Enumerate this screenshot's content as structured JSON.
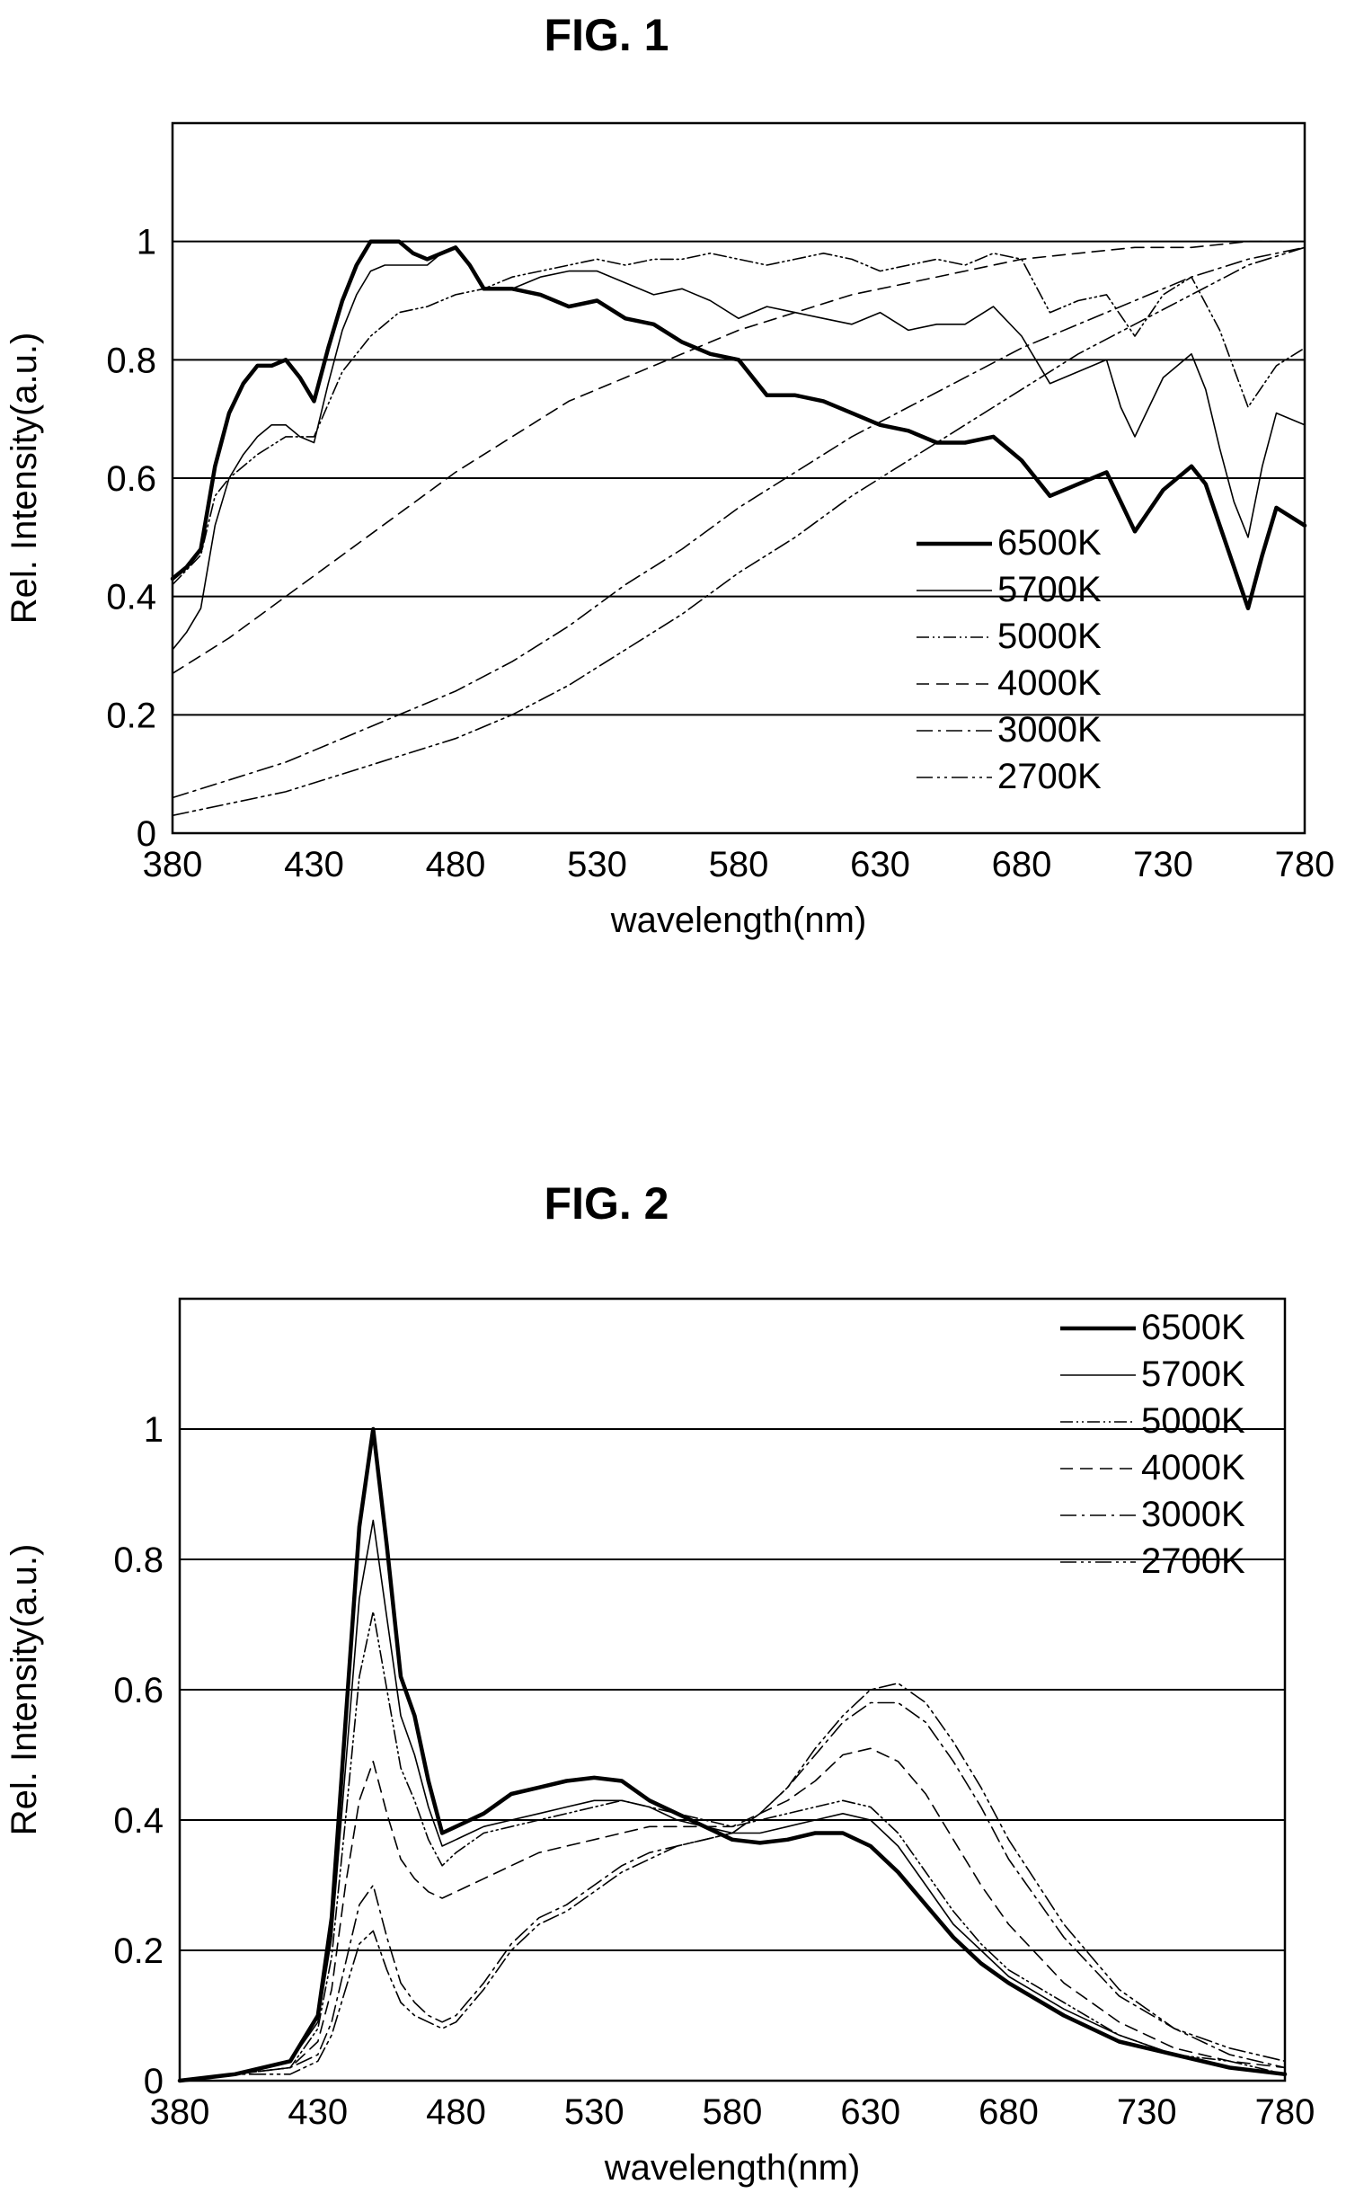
{
  "figures": {
    "fig1_title": "FIG. 1",
    "fig2_title": "FIG. 2"
  },
  "chart_data": [
    {
      "type": "line",
      "title": "FIG. 1",
      "xlabel": "wavelength(nm)",
      "ylabel": "Rel. Intensity(a.u.)",
      "xlim": [
        380,
        780
      ],
      "ylim": [
        0,
        1.2
      ],
      "xticks": [
        380,
        430,
        480,
        530,
        580,
        630,
        680,
        730,
        780
      ],
      "yticks": [
        0,
        0.2,
        0.4,
        0.6,
        0.8,
        1
      ],
      "ytick_labels": [
        "0",
        "0.2",
        "0.4",
        "0.6",
        "0.8",
        "1"
      ],
      "grid": "horizontal",
      "legend": "bottom-right",
      "series": [
        {
          "name": "6500K",
          "style": "thick",
          "x": [
            380,
            385,
            390,
            395,
            400,
            405,
            410,
            415,
            420,
            425,
            430,
            435,
            440,
            445,
            450,
            455,
            460,
            465,
            470,
            475,
            480,
            485,
            490,
            500,
            510,
            520,
            530,
            540,
            550,
            560,
            570,
            580,
            590,
            600,
            610,
            620,
            630,
            640,
            650,
            660,
            670,
            680,
            690,
            700,
            710,
            715,
            720,
            730,
            740,
            745,
            750,
            755,
            760,
            765,
            770,
            780
          ],
          "y": [
            0.43,
            0.45,
            0.48,
            0.62,
            0.71,
            0.76,
            0.79,
            0.79,
            0.8,
            0.77,
            0.73,
            0.82,
            0.9,
            0.96,
            1.0,
            1.0,
            1.0,
            0.98,
            0.97,
            0.98,
            0.99,
            0.96,
            0.92,
            0.92,
            0.91,
            0.89,
            0.9,
            0.87,
            0.86,
            0.83,
            0.81,
            0.8,
            0.74,
            0.74,
            0.73,
            0.71,
            0.69,
            0.68,
            0.66,
            0.66,
            0.67,
            0.63,
            0.57,
            0.59,
            0.61,
            0.56,
            0.51,
            0.58,
            0.62,
            0.59,
            0.52,
            0.45,
            0.38,
            0.47,
            0.55,
            0.52
          ]
        },
        {
          "name": "5700K",
          "style": "thin",
          "x": [
            380,
            385,
            390,
            395,
            400,
            405,
            410,
            415,
            420,
            425,
            430,
            435,
            440,
            445,
            450,
            455,
            460,
            465,
            470,
            475,
            480,
            485,
            490,
            500,
            510,
            520,
            530,
            540,
            550,
            560,
            570,
            580,
            590,
            600,
            610,
            620,
            630,
            640,
            650,
            660,
            670,
            680,
            690,
            700,
            710,
            715,
            720,
            730,
            740,
            745,
            750,
            755,
            760,
            765,
            770,
            780
          ],
          "y": [
            0.31,
            0.34,
            0.38,
            0.52,
            0.6,
            0.64,
            0.67,
            0.69,
            0.69,
            0.67,
            0.66,
            0.76,
            0.85,
            0.91,
            0.95,
            0.96,
            0.96,
            0.96,
            0.96,
            0.98,
            0.99,
            0.96,
            0.92,
            0.92,
            0.94,
            0.95,
            0.95,
            0.93,
            0.91,
            0.92,
            0.9,
            0.87,
            0.89,
            0.88,
            0.87,
            0.86,
            0.88,
            0.85,
            0.86,
            0.86,
            0.89,
            0.84,
            0.76,
            0.78,
            0.8,
            0.72,
            0.67,
            0.77,
            0.81,
            0.75,
            0.65,
            0.56,
            0.5,
            0.62,
            0.71,
            0.69
          ]
        },
        {
          "name": "5000K",
          "style": "dot-dash-fine",
          "x": [
            380,
            390,
            395,
            400,
            410,
            420,
            430,
            440,
            450,
            460,
            470,
            480,
            490,
            500,
            510,
            520,
            530,
            540,
            550,
            560,
            570,
            580,
            590,
            600,
            610,
            620,
            630,
            640,
            650,
            660,
            670,
            680,
            690,
            700,
            710,
            720,
            730,
            740,
            750,
            760,
            770,
            780
          ],
          "y": [
            0.42,
            0.47,
            0.57,
            0.6,
            0.64,
            0.67,
            0.67,
            0.78,
            0.84,
            0.88,
            0.89,
            0.91,
            0.92,
            0.94,
            0.95,
            0.96,
            0.97,
            0.96,
            0.97,
            0.97,
            0.98,
            0.97,
            0.96,
            0.97,
            0.98,
            0.97,
            0.95,
            0.96,
            0.97,
            0.96,
            0.98,
            0.97,
            0.88,
            0.9,
            0.91,
            0.84,
            0.91,
            0.94,
            0.85,
            0.72,
            0.79,
            0.82
          ]
        },
        {
          "name": "4000K",
          "style": "dash",
          "x": [
            380,
            400,
            420,
            440,
            460,
            480,
            500,
            520,
            540,
            560,
            580,
            600,
            620,
            640,
            660,
            680,
            700,
            720,
            740,
            760,
            780
          ],
          "y": [
            0.27,
            0.33,
            0.4,
            0.47,
            0.54,
            0.61,
            0.67,
            0.73,
            0.77,
            0.81,
            0.85,
            0.88,
            0.91,
            0.93,
            0.95,
            0.97,
            0.98,
            0.99,
            0.99,
            1.0,
            1.0
          ]
        },
        {
          "name": "3000K",
          "style": "dash-dot",
          "x": [
            380,
            400,
            420,
            440,
            460,
            480,
            500,
            520,
            540,
            560,
            580,
            600,
            620,
            640,
            660,
            680,
            700,
            720,
            740,
            760,
            780
          ],
          "y": [
            0.06,
            0.09,
            0.12,
            0.16,
            0.2,
            0.24,
            0.29,
            0.35,
            0.42,
            0.48,
            0.55,
            0.61,
            0.67,
            0.72,
            0.77,
            0.82,
            0.86,
            0.9,
            0.94,
            0.97,
            0.99
          ]
        },
        {
          "name": "2700K",
          "style": "dash-dot-dot",
          "x": [
            380,
            400,
            420,
            440,
            460,
            480,
            500,
            520,
            540,
            560,
            580,
            600,
            620,
            640,
            660,
            680,
            700,
            720,
            740,
            760,
            780
          ],
          "y": [
            0.03,
            0.05,
            0.07,
            0.1,
            0.13,
            0.16,
            0.2,
            0.25,
            0.31,
            0.37,
            0.44,
            0.5,
            0.57,
            0.63,
            0.69,
            0.75,
            0.81,
            0.86,
            0.91,
            0.96,
            0.99
          ]
        }
      ]
    },
    {
      "type": "line",
      "title": "FIG. 2",
      "xlabel": "wavelength(nm)",
      "ylabel": "Rel. Intensity(a.u.)",
      "xlim": [
        380,
        780
      ],
      "ylim": [
        0,
        1.2
      ],
      "xticks": [
        380,
        430,
        480,
        530,
        580,
        630,
        680,
        730,
        780
      ],
      "yticks": [
        0,
        0.2,
        0.4,
        0.6,
        0.8,
        1
      ],
      "ytick_labels": [
        "0",
        "0.2",
        "0.4",
        "0.6",
        "0.8",
        "1"
      ],
      "grid": "horizontal",
      "legend": "top-right",
      "series": [
        {
          "name": "6500K",
          "style": "thick",
          "x": [
            380,
            400,
            420,
            430,
            435,
            440,
            445,
            450,
            455,
            460,
            465,
            470,
            475,
            480,
            490,
            500,
            510,
            520,
            530,
            540,
            550,
            560,
            570,
            580,
            590,
            600,
            610,
            620,
            630,
            640,
            650,
            660,
            670,
            680,
            700,
            720,
            740,
            760,
            780
          ],
          "y": [
            0.0,
            0.01,
            0.03,
            0.1,
            0.25,
            0.55,
            0.85,
            1.0,
            0.82,
            0.62,
            0.56,
            0.46,
            0.38,
            0.39,
            0.41,
            0.44,
            0.45,
            0.46,
            0.465,
            0.46,
            0.43,
            0.41,
            0.39,
            0.37,
            0.365,
            0.37,
            0.38,
            0.38,
            0.36,
            0.32,
            0.27,
            0.22,
            0.18,
            0.15,
            0.1,
            0.06,
            0.04,
            0.02,
            0.01
          ]
        },
        {
          "name": "5700K",
          "style": "thin",
          "x": [
            380,
            400,
            420,
            430,
            435,
            440,
            445,
            450,
            455,
            460,
            465,
            470,
            475,
            480,
            490,
            500,
            510,
            520,
            530,
            540,
            550,
            560,
            570,
            580,
            590,
            600,
            610,
            620,
            630,
            640,
            650,
            660,
            670,
            680,
            700,
            720,
            740,
            760,
            780
          ],
          "y": [
            0.0,
            0.01,
            0.03,
            0.09,
            0.22,
            0.48,
            0.74,
            0.86,
            0.71,
            0.56,
            0.5,
            0.42,
            0.36,
            0.37,
            0.39,
            0.4,
            0.41,
            0.42,
            0.43,
            0.43,
            0.42,
            0.4,
            0.39,
            0.38,
            0.38,
            0.39,
            0.4,
            0.41,
            0.4,
            0.36,
            0.3,
            0.24,
            0.2,
            0.16,
            0.11,
            0.07,
            0.04,
            0.02,
            0.01
          ]
        },
        {
          "name": "5000K",
          "style": "dot-dash-fine",
          "x": [
            380,
            400,
            420,
            430,
            435,
            440,
            445,
            450,
            455,
            460,
            465,
            470,
            475,
            480,
            490,
            500,
            510,
            520,
            530,
            540,
            550,
            560,
            570,
            580,
            590,
            600,
            610,
            620,
            630,
            640,
            650,
            660,
            670,
            680,
            700,
            720,
            740,
            760,
            780
          ],
          "y": [
            0.0,
            0.01,
            0.02,
            0.08,
            0.19,
            0.4,
            0.62,
            0.72,
            0.6,
            0.48,
            0.43,
            0.37,
            0.33,
            0.35,
            0.38,
            0.39,
            0.4,
            0.41,
            0.42,
            0.43,
            0.42,
            0.41,
            0.4,
            0.39,
            0.4,
            0.41,
            0.42,
            0.43,
            0.42,
            0.38,
            0.32,
            0.26,
            0.21,
            0.17,
            0.12,
            0.07,
            0.04,
            0.03,
            0.01
          ]
        },
        {
          "name": "4000K",
          "style": "dash",
          "x": [
            380,
            400,
            420,
            430,
            435,
            440,
            445,
            450,
            455,
            460,
            465,
            470,
            475,
            480,
            490,
            500,
            510,
            520,
            530,
            540,
            550,
            560,
            570,
            580,
            590,
            600,
            610,
            620,
            630,
            640,
            650,
            660,
            670,
            680,
            700,
            720,
            740,
            760,
            780
          ],
          "y": [
            0.0,
            0.01,
            0.02,
            0.06,
            0.14,
            0.3,
            0.43,
            0.49,
            0.41,
            0.34,
            0.31,
            0.29,
            0.28,
            0.29,
            0.31,
            0.33,
            0.35,
            0.36,
            0.37,
            0.38,
            0.39,
            0.39,
            0.39,
            0.39,
            0.41,
            0.43,
            0.46,
            0.5,
            0.51,
            0.49,
            0.44,
            0.37,
            0.3,
            0.24,
            0.15,
            0.09,
            0.05,
            0.03,
            0.02
          ]
        },
        {
          "name": "3000K",
          "style": "dash-dot",
          "x": [
            380,
            400,
            420,
            430,
            435,
            440,
            445,
            450,
            455,
            460,
            465,
            470,
            475,
            480,
            490,
            500,
            510,
            520,
            530,
            540,
            550,
            560,
            570,
            580,
            590,
            600,
            610,
            620,
            630,
            640,
            650,
            660,
            670,
            680,
            700,
            720,
            740,
            760,
            780
          ],
          "y": [
            0.0,
            0.01,
            0.02,
            0.04,
            0.09,
            0.18,
            0.27,
            0.3,
            0.22,
            0.15,
            0.12,
            0.1,
            0.09,
            0.1,
            0.15,
            0.21,
            0.25,
            0.27,
            0.3,
            0.33,
            0.35,
            0.36,
            0.37,
            0.38,
            0.41,
            0.45,
            0.5,
            0.55,
            0.58,
            0.58,
            0.55,
            0.49,
            0.42,
            0.34,
            0.22,
            0.13,
            0.08,
            0.04,
            0.02
          ]
        },
        {
          "name": "2700K",
          "style": "dash-dot-dot",
          "x": [
            380,
            400,
            420,
            430,
            435,
            440,
            445,
            450,
            455,
            460,
            465,
            470,
            475,
            480,
            490,
            500,
            510,
            520,
            530,
            540,
            550,
            560,
            570,
            580,
            590,
            600,
            610,
            620,
            630,
            640,
            650,
            660,
            670,
            680,
            700,
            720,
            740,
            760,
            780
          ],
          "y": [
            0.0,
            0.01,
            0.01,
            0.03,
            0.07,
            0.14,
            0.21,
            0.23,
            0.17,
            0.12,
            0.1,
            0.09,
            0.08,
            0.09,
            0.14,
            0.2,
            0.24,
            0.26,
            0.29,
            0.32,
            0.34,
            0.36,
            0.37,
            0.38,
            0.41,
            0.45,
            0.51,
            0.56,
            0.6,
            0.61,
            0.58,
            0.52,
            0.45,
            0.37,
            0.24,
            0.14,
            0.08,
            0.05,
            0.03
          ]
        }
      ]
    }
  ]
}
